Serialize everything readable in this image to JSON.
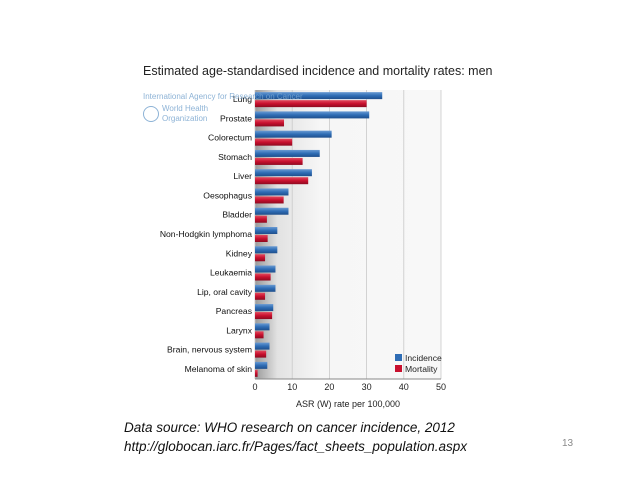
{
  "chart_data": {
    "type": "bar",
    "orientation": "horizontal",
    "title": "Estimated age-standardised incidence and mortality rates: men",
    "xlabel": "ASR (W) rate per 100,000",
    "ylabel": "",
    "xlim": [
      0,
      50
    ],
    "xticks": [
      0,
      10,
      20,
      30,
      40,
      50
    ],
    "grid": true,
    "legend_position": "bottom-right",
    "categories": [
      "Lung",
      "Prostate",
      "Colorectum",
      "Stomach",
      "Liver",
      "Oesophagus",
      "Bladder",
      "Non-Hodgkin lymphoma",
      "Kidney",
      "Leukaemia",
      "Lip, oral cavity",
      "Pancreas",
      "Larynx",
      "Brain, nervous system",
      "Melanoma of skin"
    ],
    "series": [
      {
        "name": "Incidence",
        "color": "#2f6db5",
        "values": [
          34.2,
          30.7,
          20.6,
          17.4,
          15.3,
          9.0,
          9.0,
          6.0,
          6.0,
          5.5,
          5.5,
          4.9,
          3.9,
          3.9,
          3.3
        ]
      },
      {
        "name": "Mortality",
        "color": "#c8102e",
        "values": [
          30.0,
          7.8,
          10.0,
          12.8,
          14.3,
          7.7,
          3.2,
          3.4,
          2.7,
          4.2,
          2.7,
          4.6,
          2.3,
          3.0,
          0.7
        ]
      }
    ]
  },
  "watermark": {
    "iarc": "International Agency for Research on Cancer",
    "who_line1": "World Health",
    "who_line2": "Organization"
  },
  "source": {
    "line1": "Data source: WHO research on cancer incidence, 2012",
    "line2": "http://globocan.iarc.fr/Pages/fact_sheets_population.aspx"
  },
  "slide_number": "13"
}
